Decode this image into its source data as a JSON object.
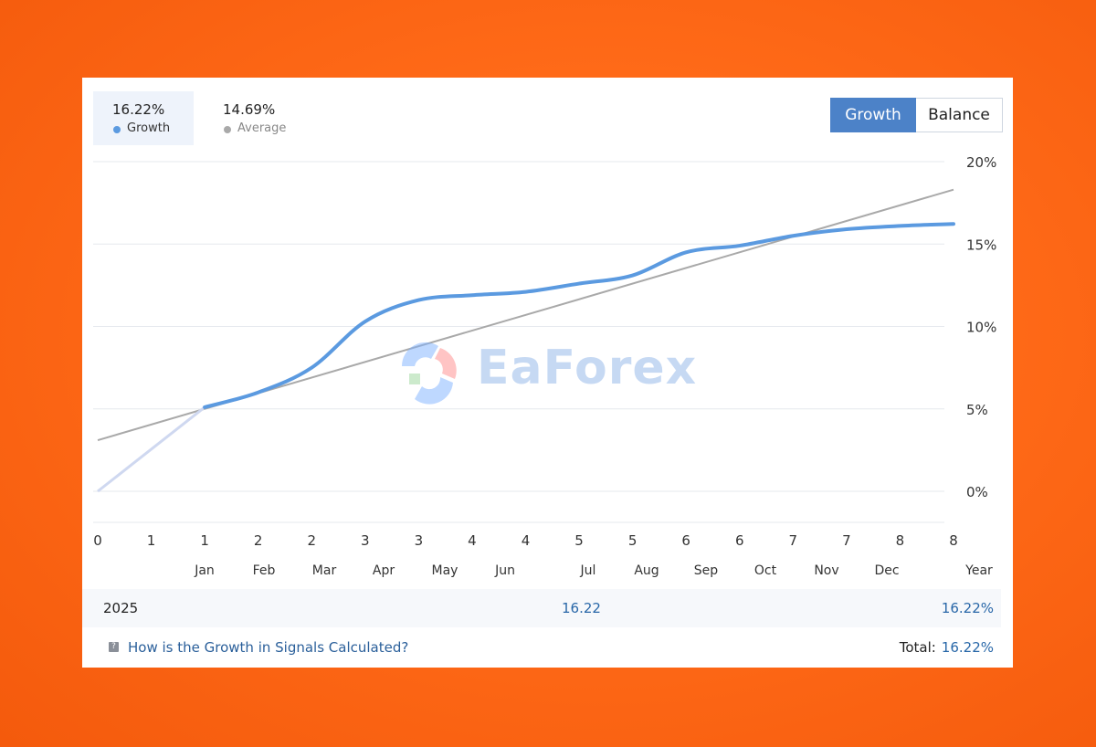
{
  "stats": {
    "growth": {
      "value": "16.22%",
      "label": "Growth",
      "color": "#5b9ae0"
    },
    "average": {
      "value": "14.69%",
      "label": "Average",
      "color": "#a9a9a9"
    }
  },
  "toggle": {
    "growth_label": "Growth",
    "balance_label": "Balance",
    "active": "Growth"
  },
  "watermark": {
    "text": "EaForex"
  },
  "chart_data": {
    "type": "line",
    "x_tick_labels": [
      "0",
      "1",
      "1",
      "2",
      "2",
      "3",
      "3",
      "4",
      "4",
      "5",
      "5",
      "6",
      "6",
      "7",
      "7",
      "8",
      "8"
    ],
    "month_labels": [
      "Jan",
      "Feb",
      "Mar",
      "Apr",
      "May",
      "Jun",
      "Jul",
      "Aug",
      "Sep",
      "Oct",
      "Nov",
      "Dec",
      "Year"
    ],
    "y_tick_labels": [
      "20%",
      "15%",
      "10%",
      "5%",
      "0%"
    ],
    "ylim": [
      0,
      20
    ],
    "xlim": [
      0,
      16
    ],
    "grid": true,
    "series": [
      {
        "name": "Growth",
        "color": "#5b9ae0",
        "x": [
          0,
          2,
          3,
          4,
          5,
          6,
          7,
          8,
          9,
          10,
          11,
          12,
          13,
          14,
          15,
          16
        ],
        "y": [
          0,
          5.1,
          6.0,
          7.5,
          10.3,
          11.6,
          11.9,
          12.1,
          12.6,
          13.1,
          14.5,
          14.9,
          15.5,
          15.9,
          16.1,
          16.22
        ]
      },
      {
        "name": "Average",
        "color": "#a9a9a9",
        "x": [
          0,
          16
        ],
        "y": [
          3.1,
          18.3
        ]
      }
    ]
  },
  "summary": {
    "year": "2025",
    "value": "16.22",
    "total_row": "16.22%"
  },
  "footer": {
    "help_text": "How is the Growth in Signals Calculated?",
    "total_label": "Total:",
    "total_value": "16.22%"
  }
}
